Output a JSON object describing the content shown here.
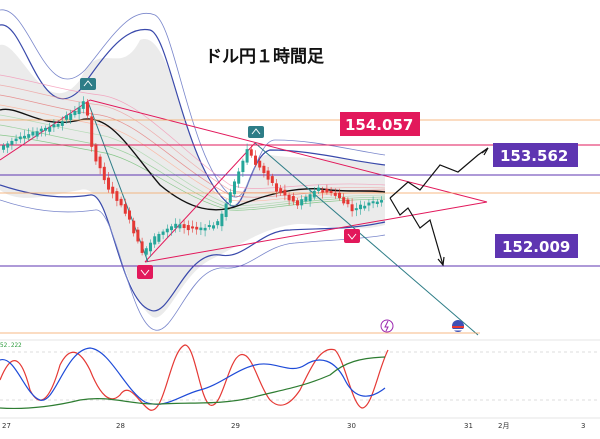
{
  "chart_data": {
    "type": "candlestick",
    "title": "ドル円１時間足",
    "x_ticks": [
      "27",
      "28",
      "29",
      "30",
      "31",
      "2月",
      "3"
    ],
    "price_labels": [
      {
        "value": "154.057",
        "color": "#e2185b"
      },
      {
        "value": "153.562",
        "color": "#5e35b1"
      },
      {
        "value": "152.009",
        "color": "#5e35b1"
      }
    ],
    "price_range": [
      151.5,
      155.2
    ],
    "oscillator_value_label": "52.222",
    "markers": [
      "peak",
      "peak",
      "trough",
      "trough"
    ],
    "colors": {
      "up": "#26a69a",
      "down": "#e53935",
      "band": "#3949ab",
      "trend": "#e2185b",
      "trend2": "#2e7d87"
    }
  }
}
